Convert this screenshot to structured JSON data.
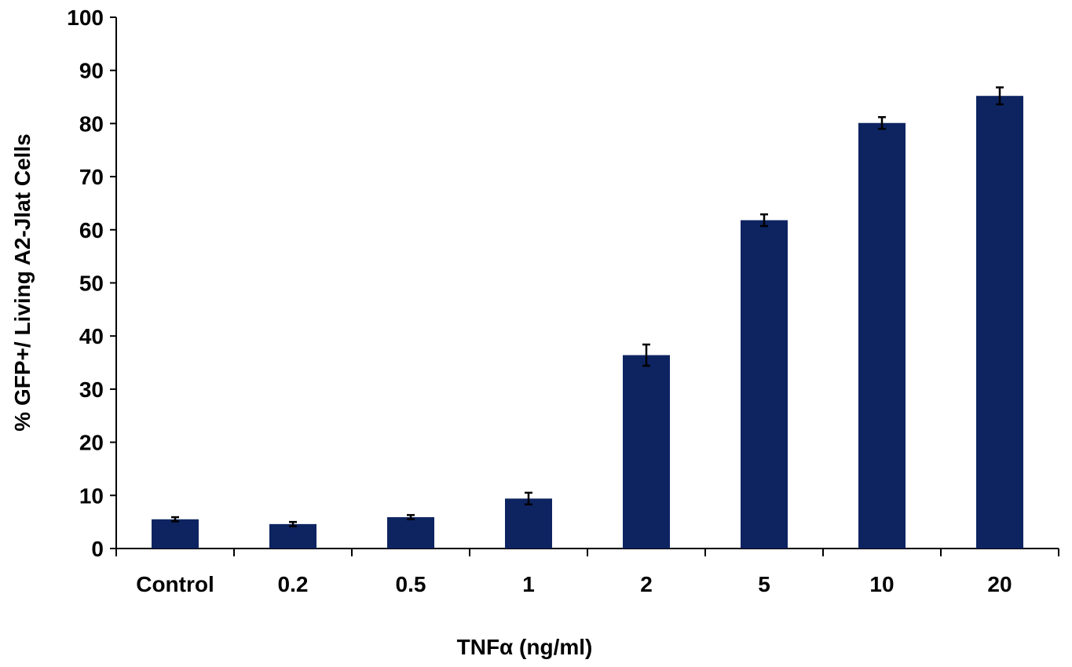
{
  "chart_data": {
    "type": "bar",
    "xlabel": "TNFα (ng/ml)",
    "ylabel": "% GFP+/ Living A2-Jlat Cells",
    "categories": [
      "Control",
      "0.2",
      "0.5",
      "1",
      "2",
      "5",
      "10",
      "20"
    ],
    "values": [
      5.5,
      4.6,
      5.9,
      9.4,
      36.4,
      61.8,
      80.1,
      85.2
    ],
    "errors": [
      0.4,
      0.4,
      0.4,
      1.1,
      2.0,
      1.1,
      1.1,
      1.6
    ],
    "ylim": [
      0,
      100
    ],
    "yticks": [
      0,
      10,
      20,
      30,
      40,
      50,
      60,
      70,
      80,
      90,
      100
    ],
    "grid": false,
    "bar_color": "#0d2461"
  }
}
